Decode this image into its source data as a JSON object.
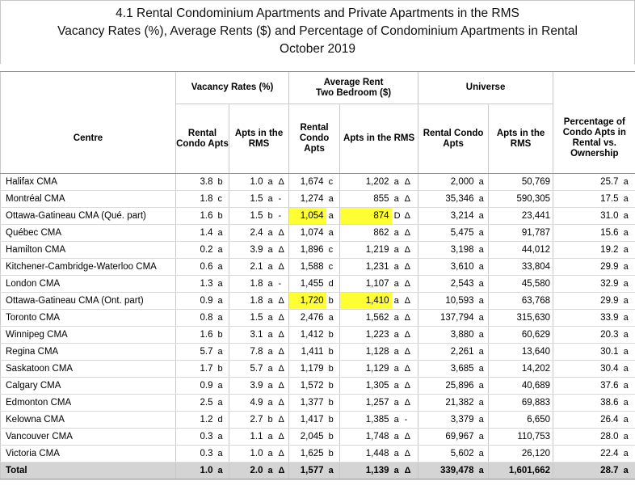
{
  "title": {
    "line1": "4.1 Rental Condominium Apartments and Private Apartments in the RMS",
    "line2": "Vacancy Rates (%), Average Rents ($) and Percentage of Condominium Apartments in Rental",
    "line3": "October 2019"
  },
  "header": {
    "group_vacancy": "Vacancy Rates (%)",
    "group_rent": "Average Rent Two Bedroom ($)",
    "group_rent_line1": "Average Rent",
    "group_rent_line2": "Two Bedroom ($)",
    "group_universe": "Universe",
    "centre": "Centre",
    "rental_condo_apts": "Rental Condo Apts",
    "apts_in_rms": "Apts in the RMS",
    "percentage": "Percentage of Condo Apts in Rental vs. Ownership"
  },
  "rows": [
    {
      "centre": "Halifax CMA",
      "vr_condo": "3.8",
      "vr_condo_q": "b",
      "vr_rms": "1.0",
      "vr_rms_q": "a",
      "vr_rms_t": "Δ",
      "ar_condo": "1,674",
      "ar_condo_q": "c",
      "ar_rms": "1,202",
      "ar_rms_q": "a",
      "ar_rms_t": "Δ",
      "u_condo": "2,000",
      "u_condo_q": "a",
      "u_rms": "50,769",
      "pct": "25.7",
      "pct_q": "a"
    },
    {
      "centre": "Montréal CMA",
      "vr_condo": "1.8",
      "vr_condo_q": "c",
      "vr_rms": "1.5",
      "vr_rms_q": "a",
      "vr_rms_t": "-",
      "ar_condo": "1,274",
      "ar_condo_q": "a",
      "ar_rms": "855",
      "ar_rms_q": "a",
      "ar_rms_t": "Δ",
      "u_condo": "35,346",
      "u_condo_q": "a",
      "u_rms": "590,305",
      "pct": "17.5",
      "pct_q": "a"
    },
    {
      "centre": "Ottawa-Gatineau CMA (Qué. part)",
      "vr_condo": "1.6",
      "vr_condo_q": "b",
      "vr_rms": "1.5",
      "vr_rms_q": "b",
      "vr_rms_t": "-",
      "ar_condo": "1,054",
      "ar_condo_q": "a",
      "ar_rms": "874",
      "ar_rms_q": "D",
      "ar_rms_t": "Δ",
      "u_condo": "3,214",
      "u_condo_q": "a",
      "u_rms": "23,441",
      "pct": "31.0",
      "pct_q": "a",
      "highlight": true
    },
    {
      "centre": "Québec CMA",
      "vr_condo": "1.4",
      "vr_condo_q": "a",
      "vr_rms": "2.4",
      "vr_rms_q": "a",
      "vr_rms_t": "Δ",
      "ar_condo": "1,074",
      "ar_condo_q": "a",
      "ar_rms": "862",
      "ar_rms_q": "a",
      "ar_rms_t": "Δ",
      "u_condo": "5,475",
      "u_condo_q": "a",
      "u_rms": "91,787",
      "pct": "15.6",
      "pct_q": "a"
    },
    {
      "centre": "Hamilton CMA",
      "vr_condo": "0.2",
      "vr_condo_q": "a",
      "vr_rms": "3.9",
      "vr_rms_q": "a",
      "vr_rms_t": "Δ",
      "ar_condo": "1,896",
      "ar_condo_q": "c",
      "ar_rms": "1,219",
      "ar_rms_q": "a",
      "ar_rms_t": "Δ",
      "u_condo": "3,198",
      "u_condo_q": "a",
      "u_rms": "44,012",
      "pct": "19.2",
      "pct_q": "a"
    },
    {
      "centre": "Kitchener-Cambridge-Waterloo CMA",
      "vr_condo": "0.6",
      "vr_condo_q": "a",
      "vr_rms": "2.1",
      "vr_rms_q": "a",
      "vr_rms_t": "Δ",
      "ar_condo": "1,588",
      "ar_condo_q": "c",
      "ar_rms": "1,231",
      "ar_rms_q": "a",
      "ar_rms_t": "Δ",
      "u_condo": "3,610",
      "u_condo_q": "a",
      "u_rms": "33,804",
      "pct": "29.9",
      "pct_q": "a"
    },
    {
      "centre": "London CMA",
      "vr_condo": "1.3",
      "vr_condo_q": "a",
      "vr_rms": "1.8",
      "vr_rms_q": "a",
      "vr_rms_t": "-",
      "ar_condo": "1,455",
      "ar_condo_q": "d",
      "ar_rms": "1,107",
      "ar_rms_q": "a",
      "ar_rms_t": "Δ",
      "u_condo": "2,543",
      "u_condo_q": "a",
      "u_rms": "45,580",
      "pct": "32.9",
      "pct_q": "a"
    },
    {
      "centre": "Ottawa-Gatineau CMA (Ont. part)",
      "vr_condo": "0.9",
      "vr_condo_q": "a",
      "vr_rms": "1.8",
      "vr_rms_q": "a",
      "vr_rms_t": "Δ",
      "ar_condo": "1,720",
      "ar_condo_q": "b",
      "ar_rms": "1,410",
      "ar_rms_q": "a",
      "ar_rms_t": "Δ",
      "u_condo": "10,593",
      "u_condo_q": "a",
      "u_rms": "63,768",
      "pct": "29.9",
      "pct_q": "a",
      "highlight": true
    },
    {
      "centre": "Toronto CMA",
      "vr_condo": "0.8",
      "vr_condo_q": "a",
      "vr_rms": "1.5",
      "vr_rms_q": "a",
      "vr_rms_t": "Δ",
      "ar_condo": "2,476",
      "ar_condo_q": "a",
      "ar_rms": "1,562",
      "ar_rms_q": "a",
      "ar_rms_t": "Δ",
      "u_condo": "137,794",
      "u_condo_q": "a",
      "u_rms": "315,630",
      "pct": "33.9",
      "pct_q": "a"
    },
    {
      "centre": "Winnipeg CMA",
      "vr_condo": "1.6",
      "vr_condo_q": "b",
      "vr_rms": "3.1",
      "vr_rms_q": "a",
      "vr_rms_t": "Δ",
      "ar_condo": "1,412",
      "ar_condo_q": "b",
      "ar_rms": "1,223",
      "ar_rms_q": "a",
      "ar_rms_t": "Δ",
      "u_condo": "3,880",
      "u_condo_q": "a",
      "u_rms": "60,629",
      "pct": "20.3",
      "pct_q": "a"
    },
    {
      "centre": "Regina CMA",
      "vr_condo": "5.7",
      "vr_condo_q": "a",
      "vr_rms": "7.8",
      "vr_rms_q": "a",
      "vr_rms_t": "Δ",
      "ar_condo": "1,411",
      "ar_condo_q": "b",
      "ar_rms": "1,128",
      "ar_rms_q": "a",
      "ar_rms_t": "Δ",
      "u_condo": "2,261",
      "u_condo_q": "a",
      "u_rms": "13,640",
      "pct": "30.1",
      "pct_q": "a"
    },
    {
      "centre": "Saskatoon CMA",
      "vr_condo": "1.7",
      "vr_condo_q": "b",
      "vr_rms": "5.7",
      "vr_rms_q": "a",
      "vr_rms_t": "Δ",
      "ar_condo": "1,179",
      "ar_condo_q": "b",
      "ar_rms": "1,129",
      "ar_rms_q": "a",
      "ar_rms_t": "Δ",
      "u_condo": "3,685",
      "u_condo_q": "a",
      "u_rms": "14,202",
      "pct": "30.4",
      "pct_q": "a"
    },
    {
      "centre": "Calgary CMA",
      "vr_condo": "0.9",
      "vr_condo_q": "a",
      "vr_rms": "3.9",
      "vr_rms_q": "a",
      "vr_rms_t": "Δ",
      "ar_condo": "1,572",
      "ar_condo_q": "b",
      "ar_rms": "1,305",
      "ar_rms_q": "a",
      "ar_rms_t": "Δ",
      "u_condo": "25,896",
      "u_condo_q": "a",
      "u_rms": "40,689",
      "pct": "37.6",
      "pct_q": "a"
    },
    {
      "centre": "Edmonton CMA",
      "vr_condo": "2.5",
      "vr_condo_q": "a",
      "vr_rms": "4.9",
      "vr_rms_q": "a",
      "vr_rms_t": "Δ",
      "ar_condo": "1,377",
      "ar_condo_q": "b",
      "ar_rms": "1,257",
      "ar_rms_q": "a",
      "ar_rms_t": "Δ",
      "u_condo": "21,382",
      "u_condo_q": "a",
      "u_rms": "69,883",
      "pct": "38.6",
      "pct_q": "a"
    },
    {
      "centre": "Kelowna CMA",
      "vr_condo": "1.2",
      "vr_condo_q": "d",
      "vr_rms": "2.7",
      "vr_rms_q": "b",
      "vr_rms_t": "Δ",
      "ar_condo": "1,417",
      "ar_condo_q": "b",
      "ar_rms": "1,385",
      "ar_rms_q": "a",
      "ar_rms_t": "-",
      "u_condo": "3,379",
      "u_condo_q": "a",
      "u_rms": "6,650",
      "pct": "26.4",
      "pct_q": "a"
    },
    {
      "centre": "Vancouver CMA",
      "vr_condo": "0.3",
      "vr_condo_q": "a",
      "vr_rms": "1.1",
      "vr_rms_q": "a",
      "vr_rms_t": "Δ",
      "ar_condo": "2,045",
      "ar_condo_q": "b",
      "ar_rms": "1,748",
      "ar_rms_q": "a",
      "ar_rms_t": "Δ",
      "u_condo": "69,967",
      "u_condo_q": "a",
      "u_rms": "110,753",
      "pct": "28.0",
      "pct_q": "a"
    },
    {
      "centre": "Victoria CMA",
      "vr_condo": "0.3",
      "vr_condo_q": "a",
      "vr_rms": "1.0",
      "vr_rms_q": "a",
      "vr_rms_t": "Δ",
      "ar_condo": "1,625",
      "ar_condo_q": "b",
      "ar_rms": "1,448",
      "ar_rms_q": "a",
      "ar_rms_t": "Δ",
      "u_condo": "5,602",
      "u_condo_q": "a",
      "u_rms": "26,120",
      "pct": "22.4",
      "pct_q": "a"
    }
  ],
  "total": {
    "centre": "Total",
    "vr_condo": "1.0",
    "vr_condo_q": "a",
    "vr_rms": "2.0",
    "vr_rms_q": "a",
    "vr_rms_t": "Δ",
    "ar_condo": "1,577",
    "ar_condo_q": "a",
    "ar_rms": "1,139",
    "ar_rms_q": "a",
    "ar_rms_t": "Δ",
    "u_condo": "339,478",
    "u_condo_q": "a",
    "u_rms": "1,601,662",
    "pct": "28.7",
    "pct_q": "a"
  },
  "colors": {
    "highlight": "#ffff33",
    "total_bg": "#d4d4d4"
  }
}
